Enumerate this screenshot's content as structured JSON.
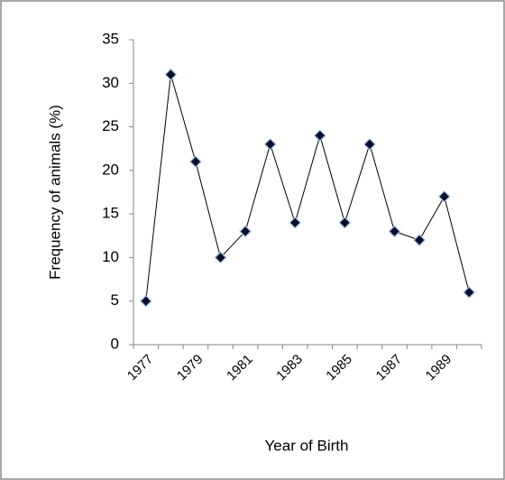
{
  "chart_data": {
    "type": "line",
    "x_label": "Year of Birth",
    "y_label": "Frequency of animals (%)",
    "categories": [
      "1977",
      null,
      "1979",
      null,
      "1981",
      null,
      "1983",
      null,
      "1985",
      null,
      "1987",
      null,
      "1989",
      null
    ],
    "values": [
      5,
      31,
      21,
      10,
      13,
      23,
      14,
      24,
      14,
      23,
      13,
      12,
      17,
      6
    ],
    "color": "#000000",
    "marker_color": "#0d0d2b",
    "ylim": [
      0,
      35
    ],
    "yticks": [
      0,
      5,
      10,
      15,
      20,
      25,
      30,
      35
    ],
    "grid": false
  }
}
